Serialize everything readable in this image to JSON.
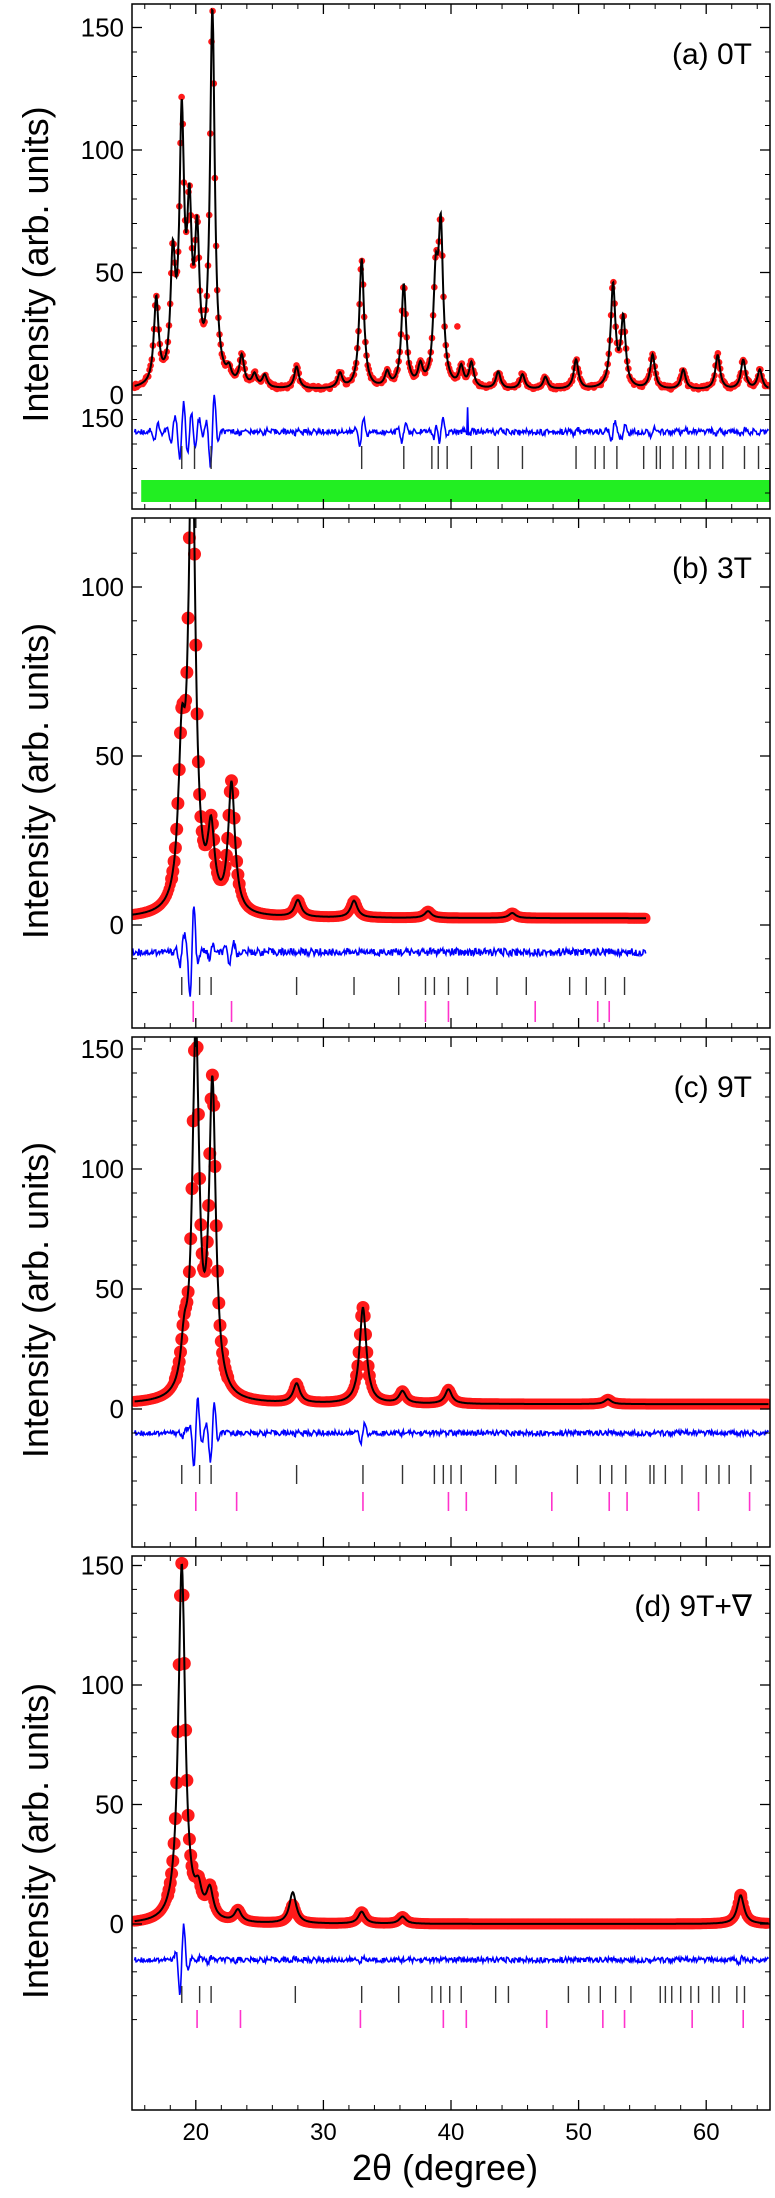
{
  "figure": {
    "xlabel": "2θ (degree)",
    "ylabel": "Intensity (arb. units)"
  },
  "chart_data": [
    {
      "type": "line",
      "label": "(a) 0T",
      "xlabel": "2θ (degree)",
      "ylabel": "Intensity (arb. units)",
      "xlim": [
        15,
        65
      ],
      "ylim": [
        -45,
        158
      ],
      "xticks": [
        20,
        30,
        40,
        50,
        60
      ],
      "yticks": [
        0,
        50,
        100,
        150
      ],
      "grid": false,
      "series": [
        {
          "role": "observed",
          "style": "red-circles",
          "marker_size": "small"
        },
        {
          "role": "calculated",
          "style": "black-line"
        },
        {
          "role": "difference",
          "style": "blue-line",
          "offset": -15
        },
        {
          "role": "bragg-phase-1",
          "style": "black-ticks"
        },
        {
          "role": "bragg-phase-2",
          "style": "green-ticks"
        }
      ],
      "peaks": [
        [
          16.9,
          35
        ],
        [
          18.2,
          48
        ],
        [
          18.9,
          104
        ],
        [
          19.5,
          62
        ],
        [
          20.1,
          55
        ],
        [
          21.3,
          152
        ],
        [
          22.6,
          5
        ],
        [
          23.6,
          12
        ],
        [
          24.6,
          5
        ],
        [
          25.4,
          5
        ],
        [
          27.9,
          9
        ],
        [
          31.3,
          6
        ],
        [
          33.0,
          53
        ],
        [
          35.0,
          6
        ],
        [
          36.3,
          42
        ],
        [
          37.6,
          8
        ],
        [
          38.8,
          40
        ],
        [
          39.2,
          62
        ],
        [
          40.8,
          8
        ],
        [
          41.6,
          10
        ],
        [
          43.7,
          7
        ],
        [
          45.6,
          6
        ],
        [
          47.4,
          5
        ],
        [
          49.8,
          12
        ],
        [
          52.7,
          42
        ],
        [
          53.5,
          28
        ],
        [
          55.8,
          14
        ],
        [
          58.2,
          8
        ],
        [
          60.9,
          14
        ],
        [
          62.9,
          12
        ],
        [
          64.2,
          8
        ]
      ],
      "outliers": [
        [
          40.5,
          28
        ]
      ],
      "difference_spikes": [
        [
          41.3,
          5
        ]
      ],
      "bragg_phase_1": [
        18.9,
        19.9,
        21.2,
        33.0,
        36.3,
        38.5,
        39.0,
        39.7,
        41.6,
        43.7,
        45.6,
        49.8,
        51.3,
        52.0,
        53.0,
        55.1,
        56.1,
        56.4,
        57.4,
        58.4,
        59.4,
        60.3,
        61.3,
        63.0,
        64.1
      ],
      "bragg_phase_2": {
        "dense": true,
        "from": 15.8,
        "to": 64.9
      }
    },
    {
      "type": "line",
      "label": "(b) 3T",
      "xlabel": "2θ (degree)",
      "ylabel": "Intensity (arb. units)",
      "xlim": [
        15,
        65
      ],
      "ylim": [
        -35,
        158
      ],
      "xticks": [
        20,
        30,
        40,
        50,
        60
      ],
      "yticks": [
        0,
        50,
        100,
        150
      ],
      "grid": false,
      "series": [
        {
          "role": "observed",
          "style": "red-circles",
          "marker_size": "large"
        },
        {
          "role": "calculated",
          "style": "black-line"
        },
        {
          "role": "difference",
          "style": "blue-line",
          "offset": -8
        },
        {
          "role": "bragg-phase-1",
          "style": "black-ticks"
        },
        {
          "role": "bragg-phase-2",
          "style": "magenta-ticks"
        }
      ],
      "data_range": [
        15,
        55.3
      ],
      "baseline": 2,
      "peaks": [
        [
          18.9,
          42
        ],
        [
          19.7,
          142
        ],
        [
          21.2,
          22
        ],
        [
          22.8,
          38
        ],
        [
          28.0,
          5
        ],
        [
          32.4,
          5
        ],
        [
          38.2,
          2
        ],
        [
          44.8,
          1.5
        ]
      ],
      "bragg_phase_1": [
        18.9,
        20.3,
        21.2,
        27.9,
        32.4,
        35.9,
        38.0,
        38.7,
        39.8,
        41.3,
        43.6,
        45.9,
        49.3,
        50.6,
        52.1,
        53.6
      ],
      "bragg_phase_2": [
        19.8,
        22.8,
        38.0,
        39.8,
        46.6,
        51.5,
        52.4
      ]
    },
    {
      "type": "line",
      "label": "(c) 9T",
      "xlabel": "2θ (degree)",
      "ylabel": "Intensity (arb. units)",
      "xlim": [
        15,
        65
      ],
      "ylim": [
        -38,
        160
      ],
      "xticks": [
        20,
        30,
        40,
        50,
        60
      ],
      "yticks": [
        0,
        50,
        100,
        150
      ],
      "grid": false,
      "series": [
        {
          "role": "observed",
          "style": "red-circles",
          "marker_size": "large"
        },
        {
          "role": "calculated",
          "style": "black-line"
        },
        {
          "role": "difference",
          "style": "blue-line",
          "offset": -10
        },
        {
          "role": "bragg-phase-1",
          "style": "black-ticks"
        },
        {
          "role": "bragg-phase-2",
          "style": "magenta-ticks"
        }
      ],
      "baseline": 2,
      "peaks": [
        [
          19.1,
          18
        ],
        [
          20.0,
          152
        ],
        [
          21.3,
          128
        ],
        [
          27.9,
          8
        ],
        [
          33.1,
          40
        ],
        [
          36.2,
          5
        ],
        [
          39.8,
          6
        ],
        [
          52.3,
          2
        ]
      ],
      "bragg_phase_1": [
        18.9,
        20.3,
        21.2,
        27.9,
        33.1,
        36.2,
        38.7,
        39.4,
        40.0,
        40.8,
        43.5,
        45.1,
        49.9,
        51.7,
        52.6,
        53.7,
        55.6,
        55.9,
        56.8,
        58.1,
        60.0,
        61.0,
        61.8,
        63.5
      ],
      "bragg_phase_2": [
        20.0,
        23.2,
        33.1,
        39.8,
        41.2,
        47.9,
        52.4,
        53.8,
        59.4,
        63.4
      ]
    },
    {
      "type": "line",
      "label": "(d) 9T+∇",
      "xlabel": "2θ (degree)",
      "ylabel": "Intensity (arb. units)",
      "xlim": [
        15,
        65
      ],
      "ylim": [
        -50,
        158
      ],
      "xticks": [
        20,
        30,
        40,
        50,
        60
      ],
      "yticks": [
        0,
        50,
        100,
        150
      ],
      "grid": false,
      "series": [
        {
          "role": "observed",
          "style": "red-circles",
          "marker_size": "large"
        },
        {
          "role": "calculated",
          "style": "black-line"
        },
        {
          "role": "difference",
          "style": "blue-line",
          "offset": -15
        },
        {
          "role": "bragg-phase-1",
          "style": "black-ticks"
        },
        {
          "role": "bragg-phase-2",
          "style": "magenta-ticks"
        }
      ],
      "baseline": 0,
      "peaks": [
        [
          18.9,
          150
        ],
        [
          20.2,
          10
        ],
        [
          21.1,
          12
        ],
        [
          23.3,
          5
        ],
        [
          27.6,
          8
        ],
        [
          33.0,
          5
        ],
        [
          36.2,
          3
        ],
        [
          62.7,
          12
        ]
      ],
      "calc_extra_peaks": [
        [
          27.6,
          13
        ]
      ],
      "bragg_phase_1": [
        18.9,
        20.3,
        21.2,
        27.8,
        33.0,
        35.9,
        38.5,
        39.2,
        39.9,
        40.8,
        43.5,
        44.5,
        49.2,
        50.8,
        51.7,
        52.9,
        54.1,
        56.4,
        56.8,
        57.3,
        58.0,
        58.8,
        59.4,
        60.5,
        61.0,
        62.4,
        63.0
      ],
      "bragg_phase_2": [
        20.1,
        23.5,
        32.9,
        39.4,
        41.2,
        47.5,
        51.9,
        53.6,
        58.9,
        62.9
      ]
    }
  ]
}
